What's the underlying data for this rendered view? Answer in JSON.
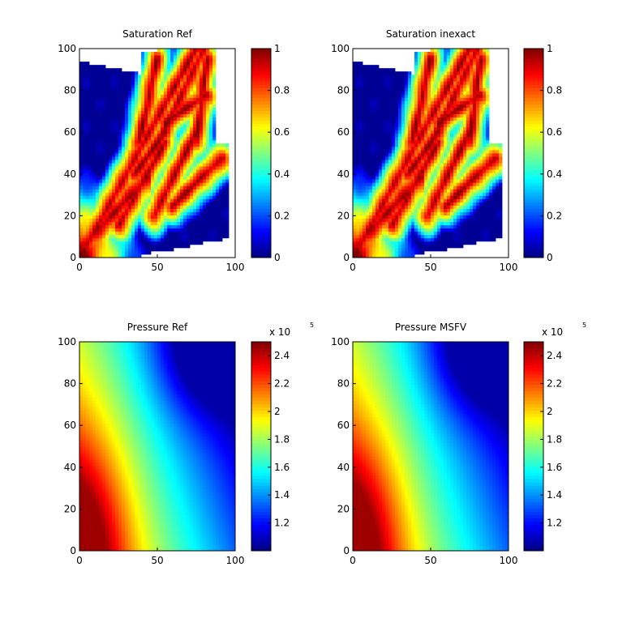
{
  "chart_data": [
    {
      "type": "heatmap",
      "title": "Saturation Ref",
      "xlim": [
        0,
        100
      ],
      "ylim": [
        0,
        100
      ],
      "xticks": [
        "0",
        "50",
        "100"
      ],
      "yticks": [
        "0",
        "20",
        "40",
        "60",
        "80",
        "100"
      ],
      "colorbar": {
        "min": 0,
        "max": 1,
        "ticks": [
          "0",
          "0.2",
          "0.4",
          "0.6",
          "0.8",
          "1"
        ],
        "multiplier": ""
      },
      "colormap": "jet",
      "field": "saturation"
    },
    {
      "type": "heatmap",
      "title": "Saturation inexact",
      "xlim": [
        0,
        100
      ],
      "ylim": [
        0,
        100
      ],
      "xticks": [
        "0",
        "50",
        "100"
      ],
      "yticks": [
        "0",
        "20",
        "40",
        "60",
        "80",
        "100"
      ],
      "colorbar": {
        "min": 0,
        "max": 1,
        "ticks": [
          "0",
          "0.2",
          "0.4",
          "0.6",
          "0.8",
          "1"
        ],
        "multiplier": ""
      },
      "colormap": "jet",
      "field": "saturation"
    },
    {
      "type": "heatmap",
      "title": "Pressure Ref",
      "xlim": [
        0,
        100
      ],
      "ylim": [
        0,
        100
      ],
      "xticks": [
        "0",
        "50",
        "100"
      ],
      "yticks": [
        "0",
        "20",
        "40",
        "60",
        "80",
        "100"
      ],
      "colorbar": {
        "min": 1.0,
        "max": 2.5,
        "ticks": [
          "1.2",
          "1.4",
          "1.6",
          "1.8",
          "2",
          "2.2",
          "2.4"
        ],
        "multiplier": "x 10",
        "exponent": "5"
      },
      "colormap": "jet",
      "field": "pressure"
    },
    {
      "type": "heatmap",
      "title": "Pressure MSFV",
      "xlim": [
        0,
        100
      ],
      "ylim": [
        0,
        100
      ],
      "xticks": [
        "0",
        "50",
        "100"
      ],
      "yticks": [
        "0",
        "20",
        "40",
        "60",
        "80",
        "100"
      ],
      "colorbar": {
        "min": 1.0,
        "max": 2.5,
        "ticks": [
          "1.2",
          "1.4",
          "1.6",
          "1.8",
          "2",
          "2.2",
          "2.4"
        ],
        "multiplier": "x 10",
        "exponent": "5"
      },
      "colormap": "jet",
      "field": "pressure"
    }
  ]
}
